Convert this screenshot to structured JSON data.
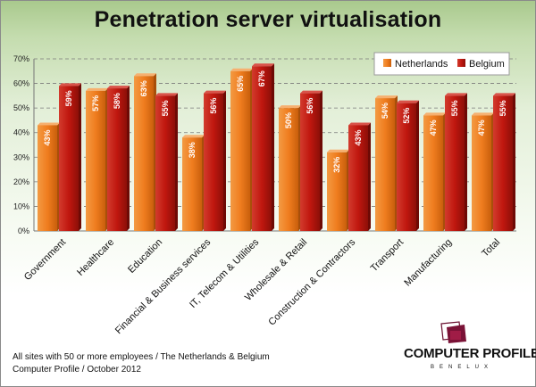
{
  "title": "Penetration server virtualisation",
  "footnote": {
    "line1": "All sites with 50 or more employees / The Netherlands & Belgium",
    "line2": "Computer Profile / October 2012"
  },
  "logo": {
    "name": "COMPUTER PROFILE",
    "subtitle": "BENELUX"
  },
  "colors": {
    "netherlands": "#f07d1f",
    "belgium": "#c0170f"
  },
  "chart_data": {
    "type": "bar",
    "title": "Penetration server virtualisation",
    "categories": [
      "Government",
      "Healthcare",
      "Education",
      "Financial & Business services",
      "IT, Telecom & Utilities",
      "Wholesale & Retail",
      "Construction & Contractors",
      "Transport",
      "Manufacturing",
      "Total"
    ],
    "series": [
      {
        "name": "Netherlands",
        "values": [
          43,
          57,
          63,
          38,
          65,
          50,
          32,
          54,
          47,
          47
        ],
        "labels": [
          "43%",
          "57%",
          "63%",
          "38%",
          "65%",
          "50%",
          "32%",
          "54%",
          "47%",
          "47%"
        ]
      },
      {
        "name": "Belgium",
        "values": [
          59,
          58,
          55,
          56,
          67,
          56,
          43,
          52,
          55,
          55
        ],
        "labels": [
          "59%",
          "58%",
          "55%",
          "56%",
          "67%",
          "56%",
          "43%",
          "52%",
          "55%",
          "55%"
        ]
      }
    ],
    "ylim": [
      0,
      70
    ],
    "yticks": [
      "0%",
      "10%",
      "20%",
      "30%",
      "40%",
      "50%",
      "60%",
      "70%"
    ],
    "grid": "dashed horizontal",
    "legend": "top-right"
  }
}
